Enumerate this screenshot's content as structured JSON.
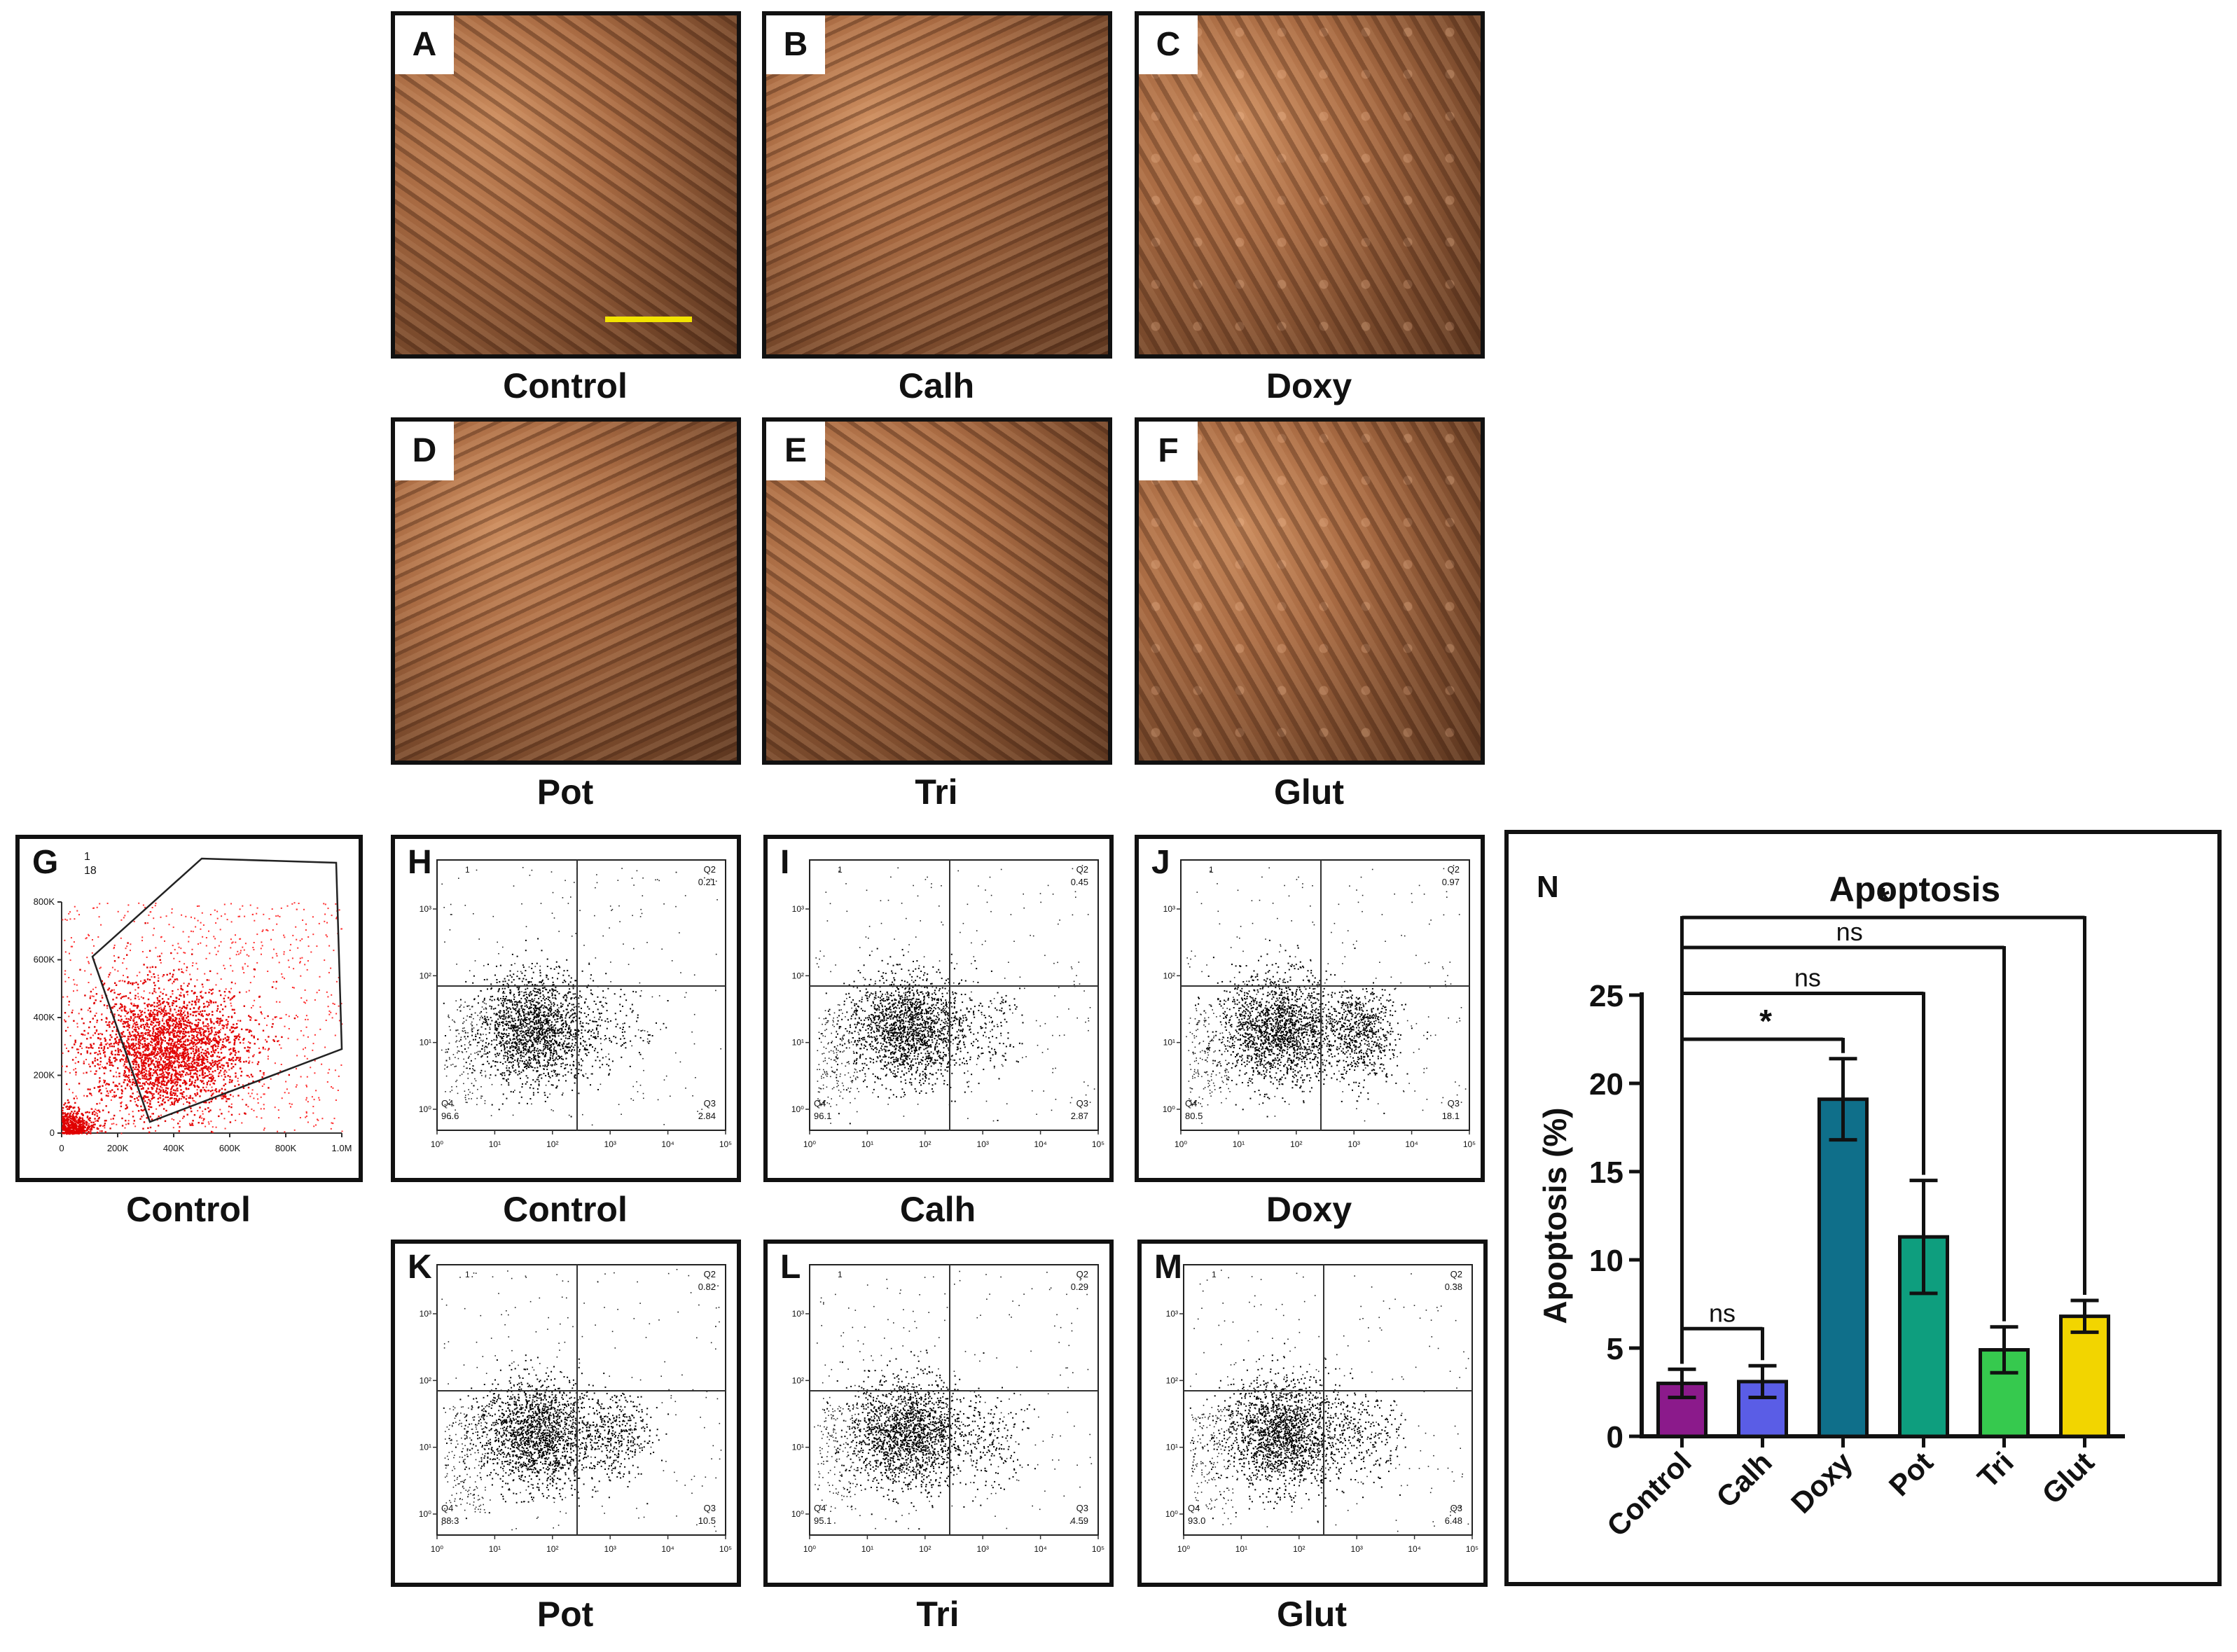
{
  "micrographs": [
    {
      "letter": "A",
      "caption": "Control"
    },
    {
      "letter": "B",
      "caption": "Calh"
    },
    {
      "letter": "C",
      "caption": "Doxy"
    },
    {
      "letter": "D",
      "caption": "Pot"
    },
    {
      "letter": "E",
      "caption": "Tri"
    },
    {
      "letter": "F",
      "caption": "Glut"
    }
  ],
  "gating": {
    "letter": "G",
    "caption": "Control",
    "gate_id": "1",
    "gate_pct": "18",
    "x_ticks": [
      "0",
      "200K",
      "400K",
      "600K",
      "800K",
      "1.0M"
    ],
    "y_ticks": [
      "0",
      "200K",
      "400K",
      "600K",
      "800K"
    ]
  },
  "flow_plots": [
    {
      "letter": "H",
      "caption": "Control",
      "q2": "0.21",
      "q3": "2.84",
      "q4": "96.6",
      "gate": "1"
    },
    {
      "letter": "I",
      "caption": "Calh",
      "q2": "0.45",
      "q3": "2.87",
      "q4": "96.1",
      "gate": "1"
    },
    {
      "letter": "J",
      "caption": "Doxy",
      "q2": "0.97",
      "q3": "18.1",
      "q4": "80.5",
      "gate": "1"
    },
    {
      "letter": "K",
      "caption": "Pot",
      "q2": "0.82",
      "q3": "10.5",
      "q4": "88.3",
      "gate": "1"
    },
    {
      "letter": "L",
      "caption": "Tri",
      "q2": "0.29",
      "q3": "4.59",
      "q4": "95.1",
      "gate": "1"
    },
    {
      "letter": "M",
      "caption": "Glut",
      "q2": "0.38",
      "q3": "6.48",
      "q4": "93.0",
      "gate": "1"
    }
  ],
  "flow_labels": {
    "q2": "Q2",
    "q3": "Q3",
    "q4": "Q4",
    "x_ticks": [
      "10⁰",
      "10¹",
      "10²",
      "10³",
      "10⁴",
      "10⁵"
    ],
    "y_ticks": [
      "10⁰",
      "10¹",
      "10²",
      "10³"
    ]
  },
  "chart_data": {
    "type": "bar",
    "panel_letter": "N",
    "title": "Apoptosis",
    "ylabel": "Apoptosis (%)",
    "xlabel": "",
    "categories": [
      "Control",
      "Calh",
      "Doxy",
      "Pot",
      "Tri",
      "Glut"
    ],
    "values": [
      3.0,
      3.1,
      19.1,
      11.3,
      4.9,
      6.8
    ],
    "errors": [
      0.8,
      0.9,
      2.3,
      3.2,
      1.3,
      0.9
    ],
    "colors": [
      "#8b1a8b",
      "#5a5de6",
      "#0f6f8a",
      "#0e9e7e",
      "#36c94e",
      "#f2d500"
    ],
    "ylim": [
      0,
      25
    ],
    "yticks": [
      "0",
      "5",
      "10",
      "15",
      "20",
      "25"
    ],
    "comparisons": [
      {
        "from": "Control",
        "to": "Calh",
        "label": "ns"
      },
      {
        "from": "Control",
        "to": "Doxy",
        "label": "*"
      },
      {
        "from": "Control",
        "to": "Pot",
        "label": "ns"
      },
      {
        "from": "Control",
        "to": "Tri",
        "label": "ns"
      },
      {
        "from": "Control",
        "to": "Glut",
        "label": "*"
      }
    ]
  }
}
